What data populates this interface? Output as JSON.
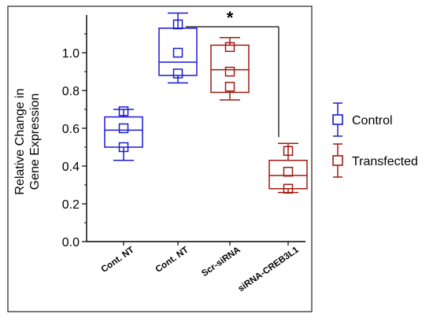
{
  "chart_data": {
    "type": "box",
    "ylabel": "Relative Change in Gene Expression",
    "ylim": [
      0.0,
      1.2
    ],
    "yticks": [
      0.0,
      0.2,
      0.4,
      0.6,
      0.8,
      1.0
    ],
    "categories": [
      "Cont. NT",
      "Cont. NT",
      "Scr-siRNA",
      "siRNA-CREB3L1"
    ],
    "groups": [
      "Control",
      "Control",
      "Transfected",
      "Transfected"
    ],
    "boxes": [
      {
        "category": "Cont. NT",
        "group": "Control",
        "whisker_low": 0.43,
        "q1": 0.5,
        "median": 0.59,
        "q3": 0.66,
        "whisker_high": 0.7,
        "points": [
          0.5,
          0.6,
          0.69
        ]
      },
      {
        "category": "Cont. NT",
        "group": "Control",
        "whisker_low": 0.84,
        "q1": 0.88,
        "median": 0.95,
        "q3": 1.13,
        "whisker_high": 1.21,
        "points": [
          0.89,
          1.0,
          1.15
        ]
      },
      {
        "category": "Scr-siRNA",
        "group": "Transfected",
        "whisker_low": 0.75,
        "q1": 0.79,
        "median": 0.91,
        "q3": 1.04,
        "whisker_high": 1.08,
        "points": [
          0.82,
          0.9,
          1.03
        ]
      },
      {
        "category": "siRNA-CREB3L1",
        "group": "Transfected",
        "whisker_low": 0.26,
        "q1": 0.28,
        "median": 0.35,
        "q3": 0.43,
        "whisker_high": 0.52,
        "points": [
          0.28,
          0.37,
          0.48
        ]
      }
    ],
    "legend": {
      "placement": "right",
      "entries": [
        {
          "name": "Control",
          "group": "Control"
        },
        {
          "name": "Transfected",
          "group": "Transfected"
        }
      ]
    },
    "annotation": {
      "text": "*",
      "from_category_index": 1,
      "to_category_index": 3
    },
    "colors": {
      "Control": "#1a1ad0",
      "Transfected": "#a01a10"
    },
    "grid": false
  }
}
